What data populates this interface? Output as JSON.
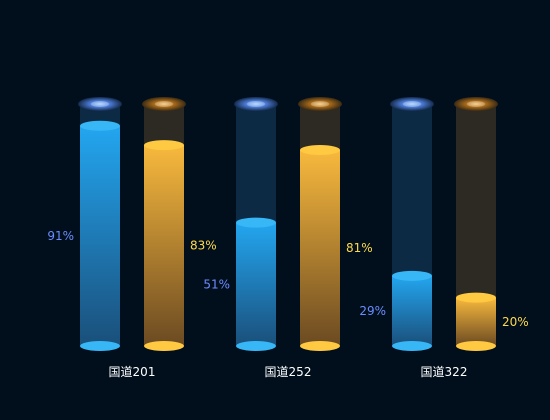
{
  "chart_data": {
    "type": "bar",
    "categories": [
      "国道201",
      "国道252",
      "国道322"
    ],
    "series": [
      {
        "values": [
          91,
          51,
          29
        ],
        "color": "#23a6f0",
        "label_color": "#6a8cff"
      },
      {
        "values": [
          83,
          81,
          20
        ],
        "color": "#f8b93d",
        "label_color": "#ffd84a"
      }
    ],
    "value_suffix": "%",
    "ylim": [
      0,
      100
    ],
    "grid": false,
    "legend": "none"
  }
}
